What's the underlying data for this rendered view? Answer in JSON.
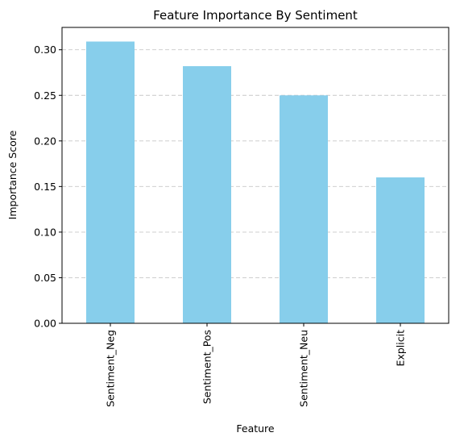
{
  "chart_data": {
    "type": "bar",
    "title": "Feature Importance By Sentiment",
    "xlabel": "Feature",
    "ylabel": "Importance Score",
    "categories": [
      "Sentiment_Neg",
      "Sentiment_Pos",
      "Sentiment_Neu",
      "Explicit"
    ],
    "values": [
      0.309,
      0.282,
      0.25,
      0.16
    ],
    "ylim": [
      0,
      0.3245
    ],
    "yticks": [
      "0.00",
      "0.05",
      "0.10",
      "0.15",
      "0.20",
      "0.25",
      "0.30"
    ],
    "ytick_values": [
      0,
      0.05,
      0.1,
      0.15,
      0.2,
      0.25,
      0.3
    ],
    "grid": "y-dashed",
    "bar_color": "#87ceeb",
    "grid_color": "#c8c8c8",
    "axis_color": "#000000"
  }
}
